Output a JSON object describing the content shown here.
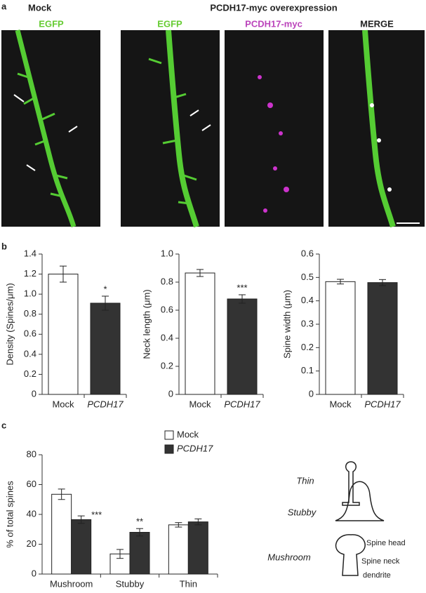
{
  "figure": {
    "panel_labels": [
      "a",
      "b",
      "c"
    ]
  },
  "panel_a": {
    "mock_title": "Mock",
    "overexpression_title": "PCDH17-myc overexpression",
    "image_labels": [
      "EGFP",
      "EGFP",
      "PCDH17-myc",
      "MERGE"
    ]
  },
  "chart_data": [
    {
      "type": "bar",
      "ylabel": "Density (Spines/μm)",
      "categories": [
        "Mock",
        "PCDH17"
      ],
      "values": [
        1.2,
        0.91
      ],
      "errors": [
        0.08,
        0.07
      ],
      "colors": [
        "#ffffff",
        "#333333"
      ],
      "significance": [
        null,
        "*"
      ],
      "ylim": [
        0,
        1.4
      ],
      "yticks": [
        0,
        0.2,
        0.4,
        0.6,
        0.8,
        {
          "value": 1,
          "label": "1.0"
        },
        1.2,
        1.4
      ]
    },
    {
      "type": "bar",
      "ylabel": "Neck length (μm)",
      "categories": [
        "Mock",
        "PCDH17"
      ],
      "values": [
        0.865,
        0.68
      ],
      "errors": [
        0.025,
        0.03
      ],
      "colors": [
        "#ffffff",
        "#333333"
      ],
      "significance": [
        null,
        "***"
      ],
      "ylim": [
        0,
        1
      ],
      "yticks": [
        0,
        0.2,
        0.4,
        0.6,
        0.8,
        {
          "value": 1,
          "label": "1.0"
        }
      ]
    },
    {
      "type": "bar",
      "ylabel": "Spine width (μm)",
      "categories": [
        "Mock",
        "PCDH17"
      ],
      "values": [
        0.482,
        0.478
      ],
      "errors": [
        0.01,
        0.013
      ],
      "colors": [
        "#ffffff",
        "#333333"
      ],
      "ylim": [
        0,
        0.6
      ],
      "yticks": [
        0,
        0.1,
        0.2,
        0.3,
        0.4,
        0.5,
        0.6
      ]
    },
    {
      "type": "grouped_bar",
      "ylabel": "% of total spines",
      "categories": [
        "Mushroom",
        "Stubby",
        "Thin"
      ],
      "series": [
        {
          "name": "Mock",
          "color": "#ffffff",
          "values": [
            53.5,
            13.5,
            33
          ],
          "errors": [
            3.5,
            3,
            1.5
          ]
        },
        {
          "name": "PCDH17",
          "color": "#333333",
          "values": [
            36.5,
            28,
            35
          ],
          "errors": [
            2.5,
            2.5,
            2
          ],
          "significance": [
            "***",
            "**",
            null
          ]
        }
      ],
      "ylim": [
        0,
        80
      ],
      "yticks": [
        0,
        20,
        40,
        60,
        80
      ],
      "legend": "top"
    }
  ],
  "diagram": {
    "labels": [
      "Thin",
      "Stubby",
      "Mushroom"
    ],
    "annotations": [
      "Spine head",
      "Spine neck",
      "dendrite"
    ]
  }
}
